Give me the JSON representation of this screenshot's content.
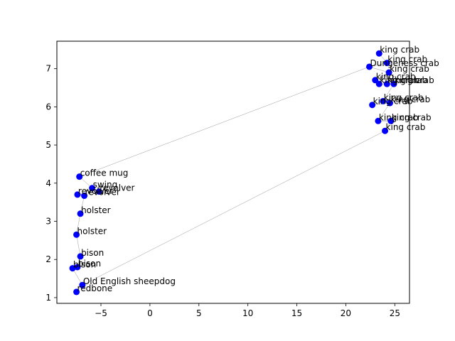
{
  "chart_data": {
    "type": "scatter",
    "title": "",
    "xlabel": "",
    "ylabel": "",
    "xlim": [
      -9.5,
      26.5
    ],
    "ylim": [
      0.85,
      7.72
    ],
    "xticks": [
      -5,
      0,
      5,
      10,
      15,
      20,
      25
    ],
    "yticks": [
      1,
      2,
      3,
      4,
      5,
      6,
      7
    ],
    "marker_color": "#0000ff",
    "line_color": "#999999",
    "points": [
      {
        "label": "king crab",
        "x": 23.4,
        "y": 7.4
      },
      {
        "label": "king crab",
        "x": 24.2,
        "y": 7.15
      },
      {
        "label": "Dungeness crab",
        "x": 22.4,
        "y": 7.05
      },
      {
        "label": "king crab",
        "x": 24.4,
        "y": 6.9
      },
      {
        "label": "king crab",
        "x": 23.0,
        "y": 6.7
      },
      {
        "label": "king crab",
        "x": 23.4,
        "y": 6.6
      },
      {
        "label": "king crab",
        "x": 24.2,
        "y": 6.6
      },
      {
        "label": "king crab",
        "x": 24.9,
        "y": 6.6
      },
      {
        "label": "king crab",
        "x": 23.8,
        "y": 6.15
      },
      {
        "label": "king crab",
        "x": 22.7,
        "y": 6.05
      },
      {
        "label": "king crab",
        "x": 24.5,
        "y": 6.1
      },
      {
        "label": "king crab",
        "x": 23.3,
        "y": 5.63
      },
      {
        "label": "king crab",
        "x": 24.6,
        "y": 5.63
      },
      {
        "label": "king crab",
        "x": 24.0,
        "y": 5.37
      },
      {
        "label": "coffee mug",
        "x": -7.2,
        "y": 4.17
      },
      {
        "label": "swing",
        "x": -5.9,
        "y": 3.87
      },
      {
        "label": "revolver",
        "x": -5.2,
        "y": 3.78
      },
      {
        "label": "revolver",
        "x": -7.4,
        "y": 3.7
      },
      {
        "label": "revolver",
        "x": -6.7,
        "y": 3.67
      },
      {
        "label": "holster",
        "x": -7.1,
        "y": 3.2
      },
      {
        "label": "holster",
        "x": -7.5,
        "y": 2.65
      },
      {
        "label": "bison",
        "x": -7.1,
        "y": 2.08
      },
      {
        "label": "bison",
        "x": -7.4,
        "y": 1.8
      },
      {
        "label": "bison",
        "x": -7.9,
        "y": 1.77
      },
      {
        "label": "Old English sheepdog",
        "x": -6.9,
        "y": 1.33
      },
      {
        "label": "redbone",
        "x": -7.5,
        "y": 1.15
      }
    ],
    "edges": [
      [
        0,
        1
      ],
      [
        1,
        2
      ],
      [
        2,
        3
      ],
      [
        3,
        4
      ],
      [
        4,
        5
      ],
      [
        5,
        6
      ],
      [
        6,
        7
      ],
      [
        7,
        8
      ],
      [
        8,
        9
      ],
      [
        9,
        10
      ],
      [
        10,
        11
      ],
      [
        11,
        12
      ],
      [
        12,
        13
      ],
      [
        2,
        14
      ],
      [
        14,
        15
      ],
      [
        15,
        16
      ],
      [
        16,
        17
      ],
      [
        17,
        18
      ],
      [
        18,
        19
      ],
      [
        19,
        20
      ],
      [
        20,
        21
      ],
      [
        21,
        22
      ],
      [
        22,
        23
      ],
      [
        23,
        24
      ],
      [
        24,
        25
      ],
      [
        24,
        13
      ]
    ]
  }
}
